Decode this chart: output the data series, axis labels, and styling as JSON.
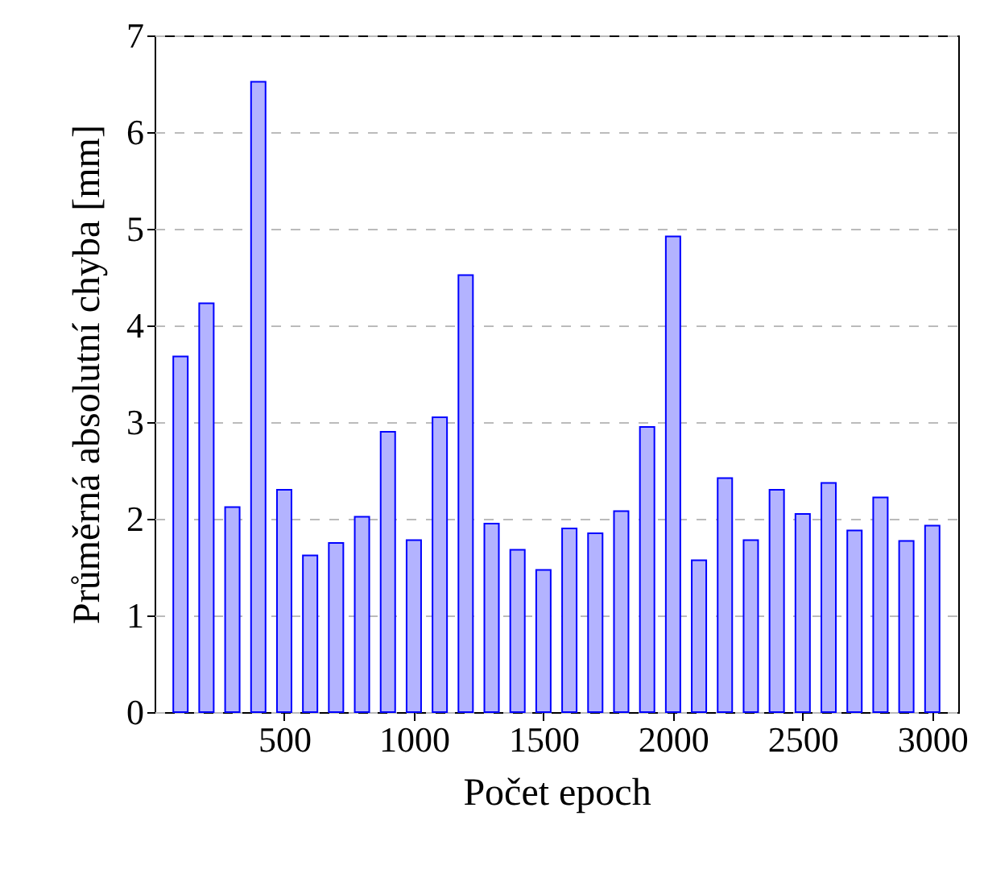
{
  "chart_data": {
    "type": "bar",
    "xlabel": "Počet epoch",
    "ylabel": "Průměrná absolutní chyba [mm]",
    "x": [
      100,
      200,
      300,
      400,
      500,
      600,
      700,
      800,
      900,
      1000,
      1100,
      1200,
      1300,
      1400,
      1500,
      1600,
      1700,
      1800,
      1900,
      2000,
      2100,
      2200,
      2300,
      2400,
      2500,
      2600,
      2700,
      2800,
      2900,
      3000
    ],
    "values": [
      3.68,
      4.23,
      2.12,
      6.52,
      2.3,
      1.62,
      1.75,
      2.02,
      2.9,
      1.78,
      3.05,
      4.52,
      1.95,
      1.68,
      1.47,
      1.9,
      1.85,
      2.08,
      2.95,
      4.92,
      1.57,
      2.42,
      1.78,
      2.3,
      2.05,
      2.37,
      1.88,
      2.22,
      1.77,
      1.93
    ],
    "color": "#b3b3ff",
    "xlim": [
      0,
      3100
    ],
    "xticks": [
      500,
      1000,
      1500,
      2000,
      2500,
      3000
    ],
    "ylim": [
      0,
      7
    ],
    "yticks": [
      0,
      1,
      2,
      3,
      4,
      5,
      6,
      7
    ],
    "grid": "y"
  }
}
